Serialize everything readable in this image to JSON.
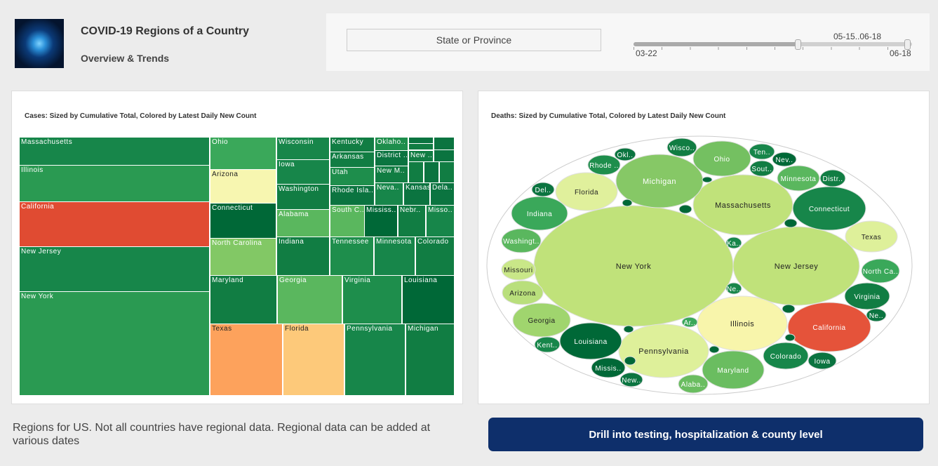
{
  "header": {
    "title": "COVID-19 Regions of a Country",
    "subtitle": "Overview & Trends",
    "logo": "coronavirus-image"
  },
  "filters": {
    "state_button": "State or Province",
    "slider": {
      "range_label": "05-15..06-18",
      "min_label": "03-22",
      "max_label": "06-18",
      "selected_start_fraction": 0.6,
      "selected_end_fraction": 1.0
    }
  },
  "cases": {
    "title": "Cases: Sized by Cumulative Total, Colored by Latest Daily New Count",
    "tiles": [
      {
        "label": "Massachusetts",
        "color": "#17864a"
      },
      {
        "label": "Illinois",
        "color": "#2a9a52"
      },
      {
        "label": "California",
        "color": "#e04b32"
      },
      {
        "label": "New Jersey",
        "color": "#17864a"
      },
      {
        "label": "New York",
        "color": "#2a9a52"
      },
      {
        "label": "Ohio",
        "color": "#3aa85a"
      },
      {
        "label": "Arizona",
        "color": "#f7f6b0"
      },
      {
        "label": "Connecticut",
        "color": "#006837"
      },
      {
        "label": "North Carolina",
        "color": "#82c865"
      },
      {
        "label": "Maryland",
        "color": "#117d43"
      },
      {
        "label": "Georgia",
        "color": "#5ab75e"
      },
      {
        "label": "Virginia",
        "color": "#1e8e4c"
      },
      {
        "label": "Louisiana",
        "color": "#006837"
      },
      {
        "label": "Texas",
        "color": "#fda25c"
      },
      {
        "label": "Florida",
        "color": "#fdc97a"
      },
      {
        "label": "Pennsylvania",
        "color": "#17864a"
      },
      {
        "label": "Michigan",
        "color": "#117d43"
      },
      {
        "label": "Wisconsin",
        "color": "#17864a"
      },
      {
        "label": "Iowa",
        "color": "#17864a"
      },
      {
        "label": "Washington",
        "color": "#117d43"
      },
      {
        "label": "Alabama",
        "color": "#5ab75e"
      },
      {
        "label": "Indiana",
        "color": "#117d43"
      },
      {
        "label": "Kentucky",
        "color": "#117d43"
      },
      {
        "label": "Arkansas",
        "color": "#117d43"
      },
      {
        "label": "Utah",
        "color": "#1e8e4c"
      },
      {
        "label": "Rhode Isla..",
        "color": "#0b7440"
      },
      {
        "label": "South C..",
        "color": "#5ab75e"
      },
      {
        "label": "Mississ..",
        "color": "#006837"
      },
      {
        "label": "Nebr..",
        "color": "#117d43"
      },
      {
        "label": "Misso..",
        "color": "#17864a"
      },
      {
        "label": "Tennessee",
        "color": "#1e8e4c"
      },
      {
        "label": "Minnesota",
        "color": "#17864a"
      },
      {
        "label": "Colorado",
        "color": "#117d43"
      },
      {
        "label": "Oklaho..",
        "color": "#1e8e4c"
      },
      {
        "label": "District ..",
        "color": "#0b7440"
      },
      {
        "label": "New M..",
        "color": "#117d43"
      },
      {
        "label": "Neva..",
        "color": "#17864a"
      },
      {
        "label": "Kansas",
        "color": "#0b7440"
      },
      {
        "label": "Dela..",
        "color": "#0b7440"
      },
      {
        "label": "New ..",
        "color": "#117d43"
      },
      {
        "label": "",
        "color": "#0b7440"
      },
      {
        "label": "",
        "color": "#117d43"
      },
      {
        "label": "",
        "color": "#0b7440"
      },
      {
        "label": "",
        "color": "#117d43"
      },
      {
        "label": "",
        "color": "#0b7440"
      },
      {
        "label": "",
        "color": "#117d43"
      },
      {
        "label": "",
        "color": "#0b7440"
      }
    ]
  },
  "deaths": {
    "title": "Deaths: Sized by Cumulative Total, Colored by Latest Daily New Count",
    "bubbles": [
      {
        "label": "New York",
        "color": "#c0e27a"
      },
      {
        "label": "New Jersey",
        "color": "#c0e27a"
      },
      {
        "label": "Massachusetts",
        "color": "#c0e27a"
      },
      {
        "label": "Michigan",
        "color": "#86c866"
      },
      {
        "label": "Illinois",
        "color": "#f8f5ab"
      },
      {
        "label": "California",
        "color": "#e5533a"
      },
      {
        "label": "Pennsylvania",
        "color": "#def09a"
      },
      {
        "label": "Connecticut",
        "color": "#17864a"
      },
      {
        "label": "Florida",
        "color": "#e0f09c"
      },
      {
        "label": "Ohio",
        "color": "#74c061"
      },
      {
        "label": "Indiana",
        "color": "#3aa85a"
      },
      {
        "label": "Georgia",
        "color": "#a0d56e"
      },
      {
        "label": "Louisiana",
        "color": "#006837"
      },
      {
        "label": "Maryland",
        "color": "#6abd60"
      },
      {
        "label": "Texas",
        "color": "#def09a"
      },
      {
        "label": "Virginia",
        "color": "#117d43"
      },
      {
        "label": "North Ca..",
        "color": "#3aa85a"
      },
      {
        "label": "Minnesota",
        "color": "#5ab75e"
      },
      {
        "label": "Colorado",
        "color": "#17864a"
      },
      {
        "label": "Iowa",
        "color": "#0b7440"
      },
      {
        "label": "Washingt..",
        "color": "#5ab75e"
      },
      {
        "label": "Missouri",
        "color": "#c9e788"
      },
      {
        "label": "Arizona",
        "color": "#b9df7c"
      },
      {
        "label": "Wisco..",
        "color": "#117d43"
      },
      {
        "label": "Ten..",
        "color": "#17864a"
      },
      {
        "label": "Nev..",
        "color": "#006837"
      },
      {
        "label": "Sout..",
        "color": "#117d43"
      },
      {
        "label": "Distr..",
        "color": "#117d43"
      },
      {
        "label": "Rhode ..",
        "color": "#1e8e4c"
      },
      {
        "label": "Okl..",
        "color": "#0b7440"
      },
      {
        "label": "Del..",
        "color": "#0b7440"
      },
      {
        "label": "Kent..",
        "color": "#17864a"
      },
      {
        "label": "Missis..",
        "color": "#006837"
      },
      {
        "label": "New..",
        "color": "#0b7440"
      },
      {
        "label": "Alaba..",
        "color": "#6abd60"
      },
      {
        "label": "Ar..",
        "color": "#3aa85a"
      },
      {
        "label": "Ka..",
        "color": "#17864a"
      },
      {
        "label": "Ne..",
        "color": "#17864a"
      },
      {
        "label": "Ne..",
        "color": "#0b7440"
      },
      {
        "label": "",
        "color": "#006837"
      },
      {
        "label": "",
        "color": "#006837"
      },
      {
        "label": "",
        "color": "#006837"
      },
      {
        "label": "",
        "color": "#006837"
      },
      {
        "label": "",
        "color": "#006837"
      },
      {
        "label": "",
        "color": "#006837"
      },
      {
        "label": "",
        "color": "#006837"
      },
      {
        "label": "",
        "color": "#006837"
      },
      {
        "label": "",
        "color": "#006837"
      }
    ]
  },
  "footer": {
    "note": "Regions for US. Not all countries have regional data. Regional data can be added at various dates",
    "drill_button": "Drill into testing, hospitalization & county level"
  }
}
